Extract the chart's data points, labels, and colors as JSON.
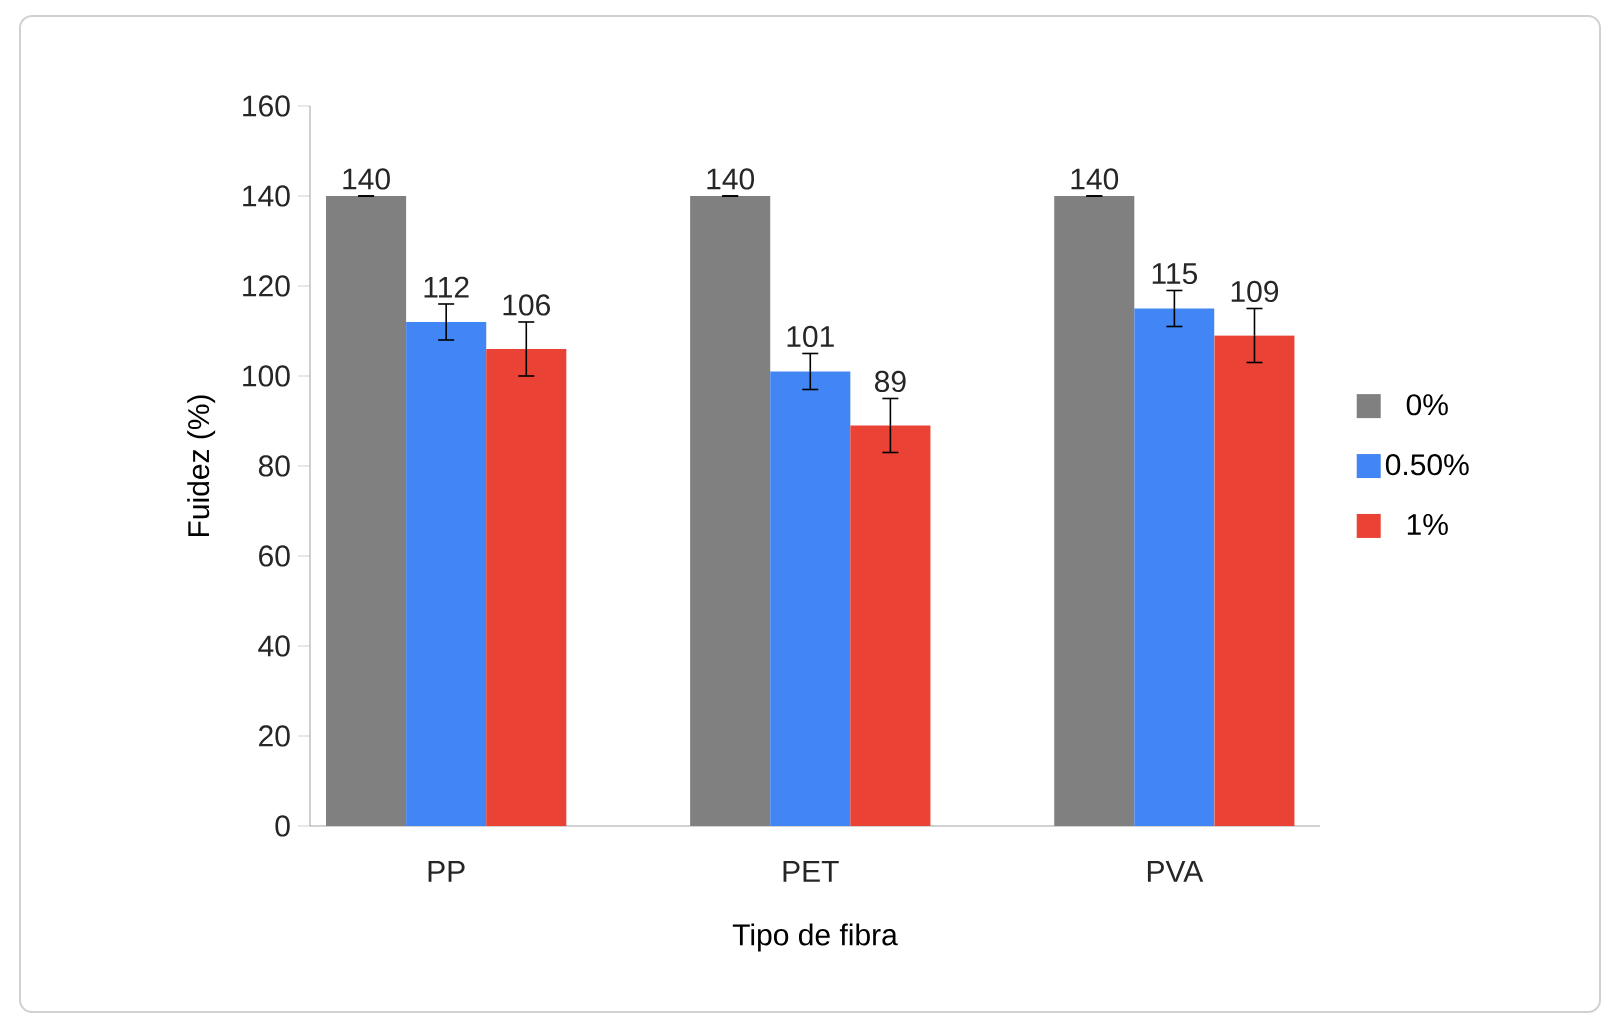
{
  "chart_data": {
    "type": "bar",
    "xlabel": "Tipo de fibra",
    "ylabel": "Fuidez (%)",
    "categories": [
      "PP",
      "PET",
      "PVA"
    ],
    "series": [
      {
        "name": "0%",
        "color": "#808080",
        "values": [
          140,
          140,
          140
        ],
        "errors": [
          0,
          0,
          0
        ]
      },
      {
        "name": "0.50%",
        "color": "#4285f4",
        "values": [
          112,
          101,
          115
        ],
        "errors": [
          4,
          4,
          4
        ]
      },
      {
        "name": "1%",
        "color": "#ea4335",
        "values": [
          106,
          89,
          109
        ],
        "errors": [
          6,
          6,
          6
        ]
      }
    ],
    "ylim": [
      0,
      160
    ],
    "yticks": [
      0,
      20,
      40,
      60,
      80,
      100,
      120,
      140,
      160
    ],
    "data_labels": true,
    "legend": "right"
  }
}
